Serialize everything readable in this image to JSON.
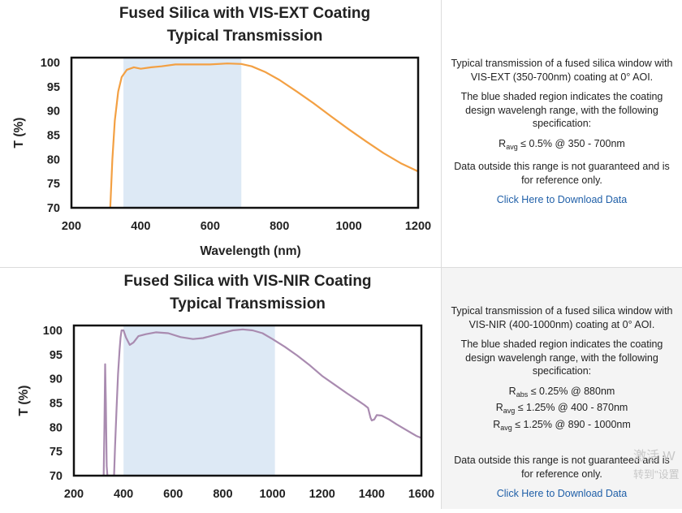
{
  "panels": [
    {
      "chart_data": {
        "type": "line",
        "title": "Fused Silica with VIS-EXT Coating",
        "subtitle": "Typical Transmission",
        "xlabel": "Wavelength (nm)",
        "ylabel": "T (%)",
        "xlim": [
          200,
          1200
        ],
        "ylim": [
          70,
          101
        ],
        "xticks": [
          200,
          400,
          600,
          800,
          1000,
          1200
        ],
        "yticks": [
          70,
          75,
          80,
          85,
          90,
          95,
          100
        ],
        "shaded_band": [
          350,
          690
        ],
        "grid": false,
        "series": [
          {
            "color": "#f3a043",
            "x": [
              312,
              318,
              325,
              335,
              345,
              360,
              380,
              400,
              430,
              460,
              500,
              550,
              600,
              650,
              690,
              720,
              760,
              800,
              850,
              900,
              950,
              1000,
              1050,
              1100,
              1150,
              1200
            ],
            "y": [
              70,
              80,
              88,
              94,
              97,
              98.5,
              99,
              98.7,
              99,
              99.2,
              99.6,
              99.6,
              99.6,
              99.8,
              99.7,
              99.2,
              98,
              96.4,
              94,
              91.5,
              88.8,
              86.2,
              83.7,
              81.3,
              79.2,
              77.5
            ]
          }
        ]
      },
      "text": {
        "intro": "Typical transmission of a fused silica window with VIS-EXT (350-700nm) coating at 0° AOI.",
        "shaded_note": "The blue shaded region indicates the coating design wavelengh range, with the following specification:",
        "specs": [
          {
            "symbol": "R",
            "sub": "avg",
            "rest": " ≤ 0.5% @ 350 - 700nm"
          }
        ],
        "disclaimer": "Data outside this range is not guaranteed and is for reference only.",
        "download_link": "Click Here to Download Data"
      }
    },
    {
      "chart_data": {
        "type": "line",
        "title": "Fused Silica with VIS-NIR Coating",
        "subtitle": "Typical Transmission",
        "xlabel": "",
        "ylabel": "T (%)",
        "xlim": [
          200,
          1600
        ],
        "ylim": [
          70,
          101
        ],
        "xticks": [
          200,
          400,
          600,
          800,
          1000,
          1200,
          1400,
          1600
        ],
        "yticks": [
          70,
          75,
          80,
          85,
          90,
          95,
          100
        ],
        "shaded_band": [
          400,
          1010
        ],
        "grid": false,
        "series": [
          {
            "color": "#a98bb0",
            "x": [
              320,
              323,
              326,
              329,
              332,
              335,
              338,
              341,
              362,
              366,
              372,
              378,
              384,
              388,
              392,
              400,
              410,
              425,
              440,
              460,
              490,
              530,
              580,
              630,
              680,
              720,
              780,
              840,
              880,
              920,
              960,
              1000,
              1050,
              1100,
              1150,
              1200,
              1250,
              1300,
              1350,
              1370,
              1385,
              1390,
              1395,
              1400,
              1410,
              1420,
              1440,
              1470,
              1500,
              1540,
              1580,
              1600
            ],
            "y": [
              70,
              80,
              93,
              85,
              72,
              70,
              70,
              70,
              70,
              76,
              84,
              91,
              96,
              98.5,
              100,
              100,
              98.5,
              97,
              97.5,
              98.8,
              99.2,
              99.6,
              99.4,
              98.6,
              98.2,
              98.4,
              99.2,
              100,
              100.2,
              100,
              99.4,
              98.2,
              96.6,
              94.8,
              92.8,
              90.6,
              88.8,
              87,
              85.3,
              84.6,
              84,
              83,
              82,
              81.4,
              81.6,
              82.5,
              82.4,
              81.6,
              80.6,
              79.4,
              78.2,
              77.8
            ]
          }
        ]
      },
      "text": {
        "intro": "Typical transmission of a fused silica window with VIS-NIR (400-1000nm) coating at 0° AOI.",
        "shaded_note": "The blue shaded region indicates the coating design wavelengh range, with the following specification:",
        "specs": [
          {
            "symbol": "R",
            "sub": "abs",
            "rest": " ≤ 0.25% @ 880nm"
          },
          {
            "symbol": "R",
            "sub": "avg",
            "rest": " ≤ 1.25% @ 400 - 870nm"
          },
          {
            "symbol": "R",
            "sub": "avg",
            "rest": " ≤ 1.25% @ 890 - 1000nm"
          }
        ],
        "disclaimer": "Data outside this range is not guaranteed and is for reference only.",
        "download_link": "Click Here to Download Data"
      }
    }
  ],
  "overlay": {
    "watermark_line1": "激活 W",
    "watermark_line2": "转到\"设置"
  },
  "colors": {
    "band": "#dde9f5",
    "frame": "#111111"
  }
}
